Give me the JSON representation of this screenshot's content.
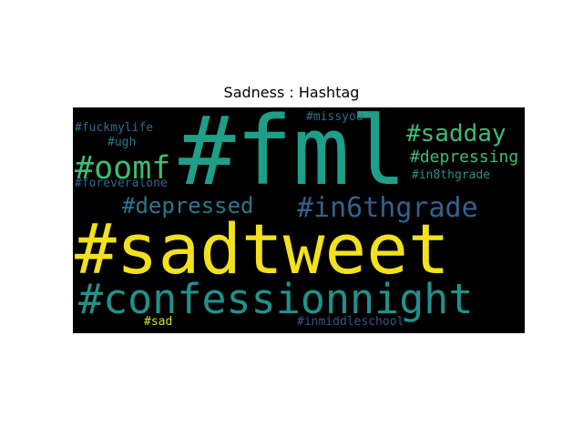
{
  "title": "Sadness : Hashtag",
  "colors": {
    "background": "#000000",
    "page": "#ffffff"
  },
  "words": [
    {
      "text": "#sadtweet",
      "color": "#f2e11c"
    },
    {
      "text": "#fml",
      "color": "#1f9e89"
    },
    {
      "text": "#confessionnight",
      "color": "#21918c"
    },
    {
      "text": "#in6thgrade",
      "color": "#35608d"
    },
    {
      "text": "#oomf",
      "color": "#3fbc73"
    },
    {
      "text": "#sadday",
      "color": "#3fbc73"
    },
    {
      "text": "#depressed",
      "color": "#2a788e"
    },
    {
      "text": "#depressing",
      "color": "#3fbc73"
    },
    {
      "text": "#in8thgrade",
      "color": "#2c8c8c"
    },
    {
      "text": "#missyou",
      "color": "#2e6e8e"
    },
    {
      "text": "#fuckmylife",
      "color": "#2f6c8e"
    },
    {
      "text": "#ugh",
      "color": "#2a788e"
    },
    {
      "text": "#foreveralone",
      "color": "#31688e"
    },
    {
      "text": "#sad",
      "color": "#d2e21b"
    },
    {
      "text": "#inmiddleschool",
      "color": "#3b528b"
    }
  ]
}
